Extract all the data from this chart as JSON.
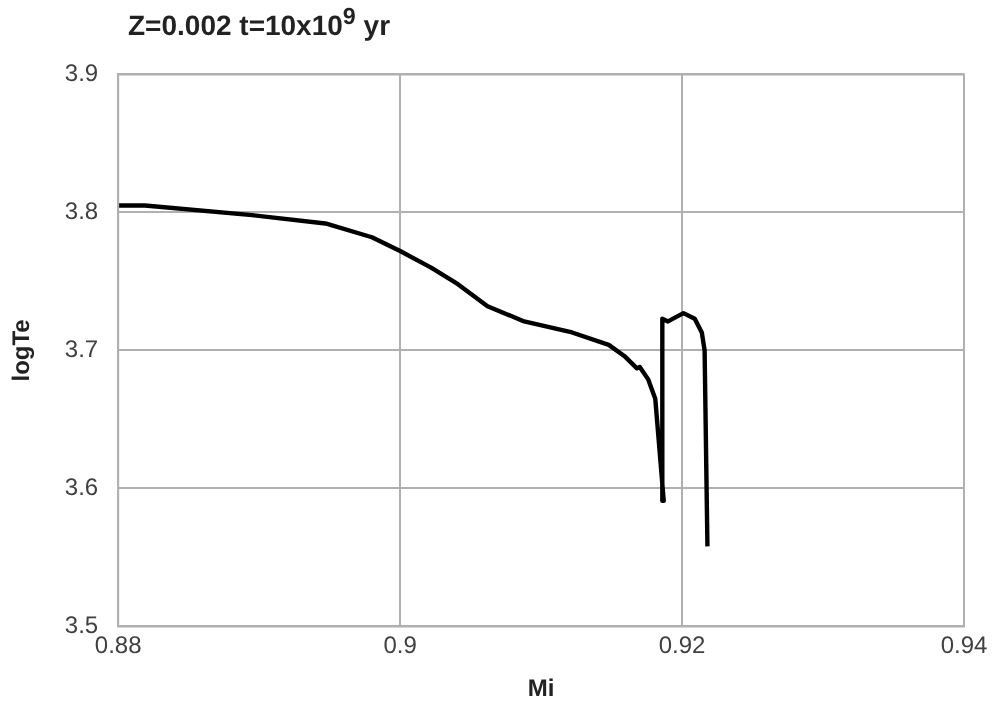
{
  "chart_data": {
    "type": "line",
    "title": "Z=0.002 t=10x10$^{9}$ yr",
    "xlabel": "Mi",
    "ylabel": "logTe",
    "xlim": [
      0.88,
      0.94
    ],
    "xticks": [
      0.88,
      0.9,
      0.92,
      0.94
    ],
    "ylim": [
      3.5,
      3.9
    ],
    "yticks": [
      3.5,
      3.6,
      3.7,
      3.8,
      3.9
    ],
    "grid": true,
    "legend": false,
    "marker": "none",
    "line_style": "solid",
    "series": [
      {
        "color": "#000000",
        "x": [
          0.88,
          0.8819,
          0.8895,
          0.8947,
          0.898,
          0.9,
          0.9022,
          0.9041,
          0.9062,
          0.9088,
          0.9122,
          0.9148,
          0.9159,
          0.9168,
          0.917,
          0.9176,
          0.9181,
          0.9187,
          0.9186,
          0.919,
          0.9201,
          0.9209,
          0.9214,
          0.9216,
          0.9218
        ],
        "values": [
          3.805,
          3.805,
          3.798,
          3.792,
          3.782,
          3.772,
          3.76,
          3.748,
          3.732,
          3.721,
          3.713,
          3.704,
          3.696,
          3.687,
          3.688,
          3.679,
          3.665,
          3.591,
          3.723,
          3.721,
          3.727,
          3.723,
          3.713,
          3.7,
          3.558
        ]
      }
    ]
  }
}
